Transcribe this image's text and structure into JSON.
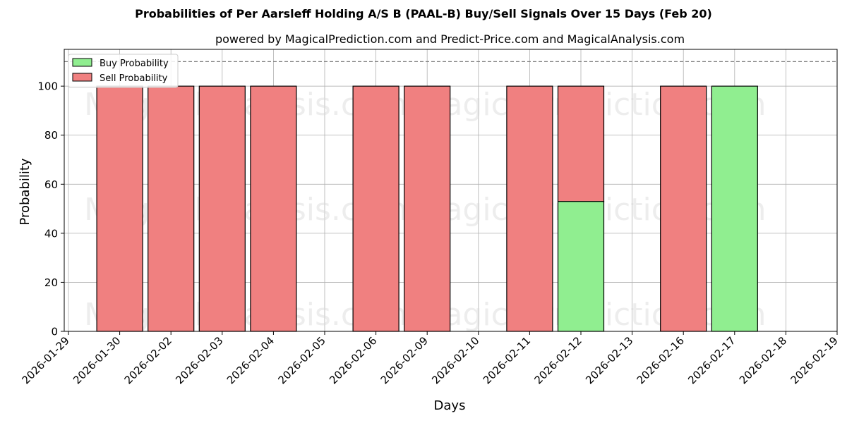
{
  "chart_data": {
    "type": "bar",
    "stacked": true,
    "title": "Probabilities of Per Aarsleff Holding A/S B (PAAL-B) Buy/Sell Signals Over 15 Days (Feb 20)",
    "subtitle": "powered by MagicalPrediction.com and Predict-Price.com and MagicalAnalysis.com",
    "xlabel": "Days",
    "ylabel": "Probability",
    "ylim": [
      0,
      115
    ],
    "yticks": [
      0,
      20,
      40,
      60,
      80,
      100
    ],
    "reference_line": 110,
    "grid": true,
    "legend_position": "top-left",
    "categories": [
      "2026-01-29",
      "2026-01-30",
      "2026-02-02",
      "2026-02-03",
      "2026-02-04",
      "2026-02-05",
      "2026-02-06",
      "2026-02-09",
      "2026-02-10",
      "2026-02-11",
      "2026-02-12",
      "2026-02-13",
      "2026-02-16",
      "2026-02-17",
      "2026-02-18",
      "2026-02-19"
    ],
    "series": [
      {
        "name": "Buy Probability",
        "color": "#90ee90",
        "values": [
          null,
          0,
          0,
          0,
          0,
          null,
          0,
          0,
          null,
          0,
          53,
          null,
          0,
          100,
          null,
          null
        ]
      },
      {
        "name": "Sell Probability",
        "color": "#f08080",
        "values": [
          null,
          100,
          100,
          100,
          100,
          null,
          100,
          100,
          null,
          100,
          47,
          null,
          100,
          0,
          null,
          null
        ]
      }
    ]
  },
  "watermarks": [
    "MagicalAnalysis.com",
    "MagicalPrediction.com"
  ]
}
